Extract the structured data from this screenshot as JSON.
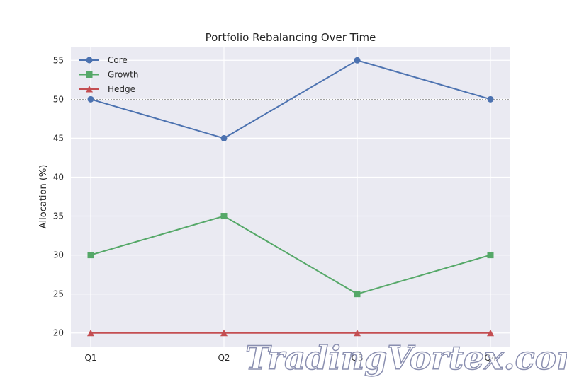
{
  "chart_data": {
    "type": "line",
    "title": "Portfolio Rebalancing Over Time",
    "xlabel": "",
    "ylabel": "Allocation (%)",
    "categories": [
      "Q1",
      "Q2",
      "Q3",
      "Q4"
    ],
    "ylim": [
      18.25,
      56.75
    ],
    "yticks": [
      20,
      25,
      30,
      35,
      40,
      45,
      50,
      55
    ],
    "grid": true,
    "reference_lines": [
      50,
      30
    ],
    "legend_position": "top-left",
    "series": [
      {
        "name": "Core",
        "values": [
          50,
          45,
          55,
          50
        ],
        "color": "#4c72b0",
        "marker": "circle"
      },
      {
        "name": "Growth",
        "values": [
          30,
          35,
          25,
          30
        ],
        "color": "#55a868",
        "marker": "square"
      },
      {
        "name": "Hedge",
        "values": [
          20,
          20,
          20,
          20
        ],
        "color": "#c44e52",
        "marker": "triangle"
      }
    ]
  },
  "watermark": {
    "text": "TradingVortex.com"
  },
  "style": {
    "plot_background": "#eaeaf2",
    "grid_color": "#ffffff",
    "reference_line_color": "#808080"
  }
}
